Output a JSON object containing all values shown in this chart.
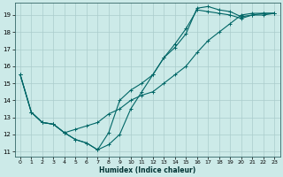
{
  "xlabel": "Humidex (Indice chaleur)",
  "bg_color": "#cceae8",
  "grid_color": "#aacccc",
  "line_color": "#006666",
  "xlim_min": -0.5,
  "xlim_max": 23.5,
  "ylim_min": 10.7,
  "ylim_max": 19.7,
  "yticks": [
    11,
    12,
    13,
    14,
    15,
    16,
    17,
    18,
    19
  ],
  "xticks": [
    0,
    1,
    2,
    3,
    4,
    5,
    6,
    7,
    8,
    9,
    10,
    11,
    12,
    13,
    14,
    15,
    16,
    17,
    18,
    19,
    20,
    21,
    22,
    23
  ],
  "line1_x": [
    0,
    1,
    2,
    3,
    4,
    5,
    6,
    7,
    8,
    9,
    10,
    11,
    12,
    13,
    14,
    15,
    16,
    17,
    18,
    19,
    20,
    21,
    22,
    23
  ],
  "line1_y": [
    15.5,
    13.3,
    12.7,
    12.6,
    12.1,
    11.7,
    11.5,
    11.1,
    12.1,
    14.0,
    14.6,
    15.0,
    15.5,
    16.5,
    17.1,
    17.9,
    19.4,
    19.5,
    19.3,
    19.2,
    18.9,
    19.0,
    19.0,
    19.1
  ],
  "line2_x": [
    0,
    1,
    2,
    3,
    4,
    5,
    6,
    7,
    8,
    9,
    10,
    11,
    12,
    13,
    14,
    15,
    16,
    17,
    18,
    19,
    20,
    21,
    22,
    23
  ],
  "line2_y": [
    15.5,
    13.3,
    12.7,
    12.6,
    12.1,
    11.7,
    11.5,
    11.1,
    11.4,
    12.0,
    13.5,
    14.5,
    15.5,
    16.5,
    17.3,
    18.2,
    19.3,
    19.2,
    19.1,
    19.0,
    18.8,
    19.0,
    19.1,
    19.1
  ],
  "line3_x": [
    0,
    1,
    2,
    3,
    4,
    5,
    6,
    7,
    8,
    9,
    10,
    11,
    12,
    13,
    14,
    15,
    16,
    17,
    18,
    19,
    20,
    21,
    22,
    23
  ],
  "line3_y": [
    15.5,
    13.3,
    12.7,
    12.6,
    12.1,
    12.3,
    12.5,
    12.7,
    13.2,
    13.5,
    14.0,
    14.3,
    14.5,
    15.0,
    15.5,
    16.0,
    16.8,
    17.5,
    18.0,
    18.5,
    19.0,
    19.1,
    19.1,
    19.1
  ]
}
